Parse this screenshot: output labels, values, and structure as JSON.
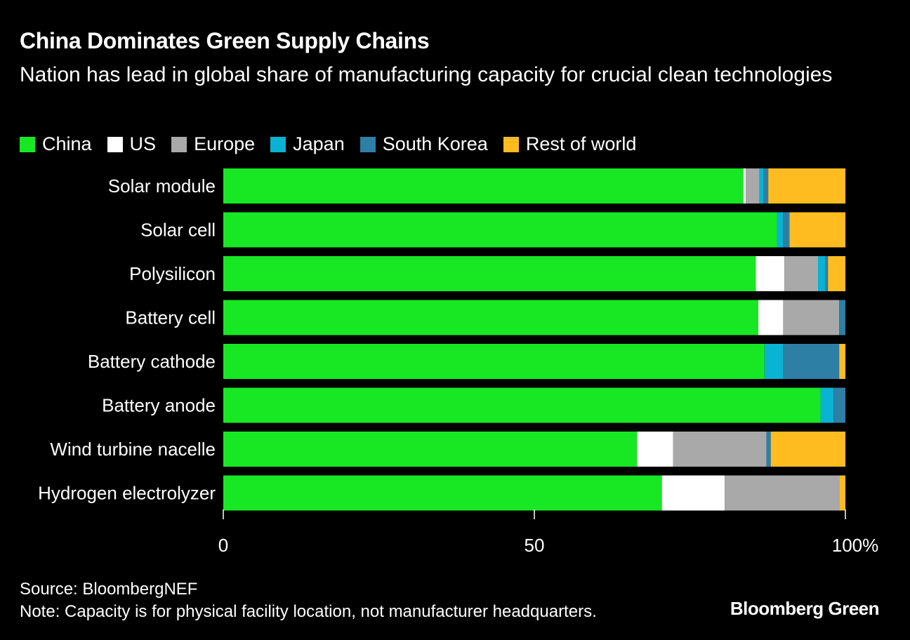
{
  "chart_data": {
    "type": "bar",
    "orientation": "horizontal",
    "stacked": true,
    "title": "China Dominates Green Supply Chains",
    "subtitle": "Nation has lead in global share of manufacturing capacity for crucial clean technologies",
    "categories": [
      "Solar module",
      "Solar cell",
      "Polysilicon",
      "Battery cell",
      "Battery cathode",
      "Battery anode",
      "Wind turbine nacelle",
      "Hydrogen electrolyzer"
    ],
    "series": [
      {
        "name": "China",
        "color": "#17e823",
        "values": [
          83.6,
          89.0,
          85.6,
          86.0,
          87.0,
          96.0,
          66.5,
          70.5
        ]
      },
      {
        "name": "US",
        "color": "#ffffff",
        "values": [
          0.4,
          0.0,
          4.6,
          4.0,
          0.0,
          0.0,
          5.8,
          10.1
        ]
      },
      {
        "name": "Europe",
        "color": "#a9a9a9",
        "values": [
          2.2,
          0.0,
          5.4,
          9.0,
          0.0,
          0.0,
          15.0,
          18.4
        ]
      },
      {
        "name": "Japan",
        "color": "#0ab2d3",
        "values": [
          0.6,
          1.0,
          1.2,
          0.0,
          3.0,
          2.1,
          0.0,
          0.0
        ]
      },
      {
        "name": "South Korea",
        "color": "#2e7fa6",
        "values": [
          0.8,
          1.0,
          0.4,
          1.0,
          9.0,
          1.9,
          0.7,
          0.0
        ]
      },
      {
        "name": "Rest of world",
        "color": "#ffbc21",
        "values": [
          12.4,
          9.0,
          2.8,
          0.0,
          1.0,
          0.0,
          12.0,
          1.0
        ]
      }
    ],
    "xlim": [
      0,
      100
    ],
    "xticks": [
      {
        "value": 0,
        "label": "0"
      },
      {
        "value": 50,
        "label": "50"
      },
      {
        "value": 100,
        "label": "100%"
      }
    ],
    "xlabel": "",
    "ylabel": "",
    "legend": "top-left"
  },
  "footer": {
    "source": "Source: BloombergNEF",
    "note": "Note: Capacity is for physical facility location, not manufacturer headquarters.",
    "brand": "Bloomberg Green"
  }
}
